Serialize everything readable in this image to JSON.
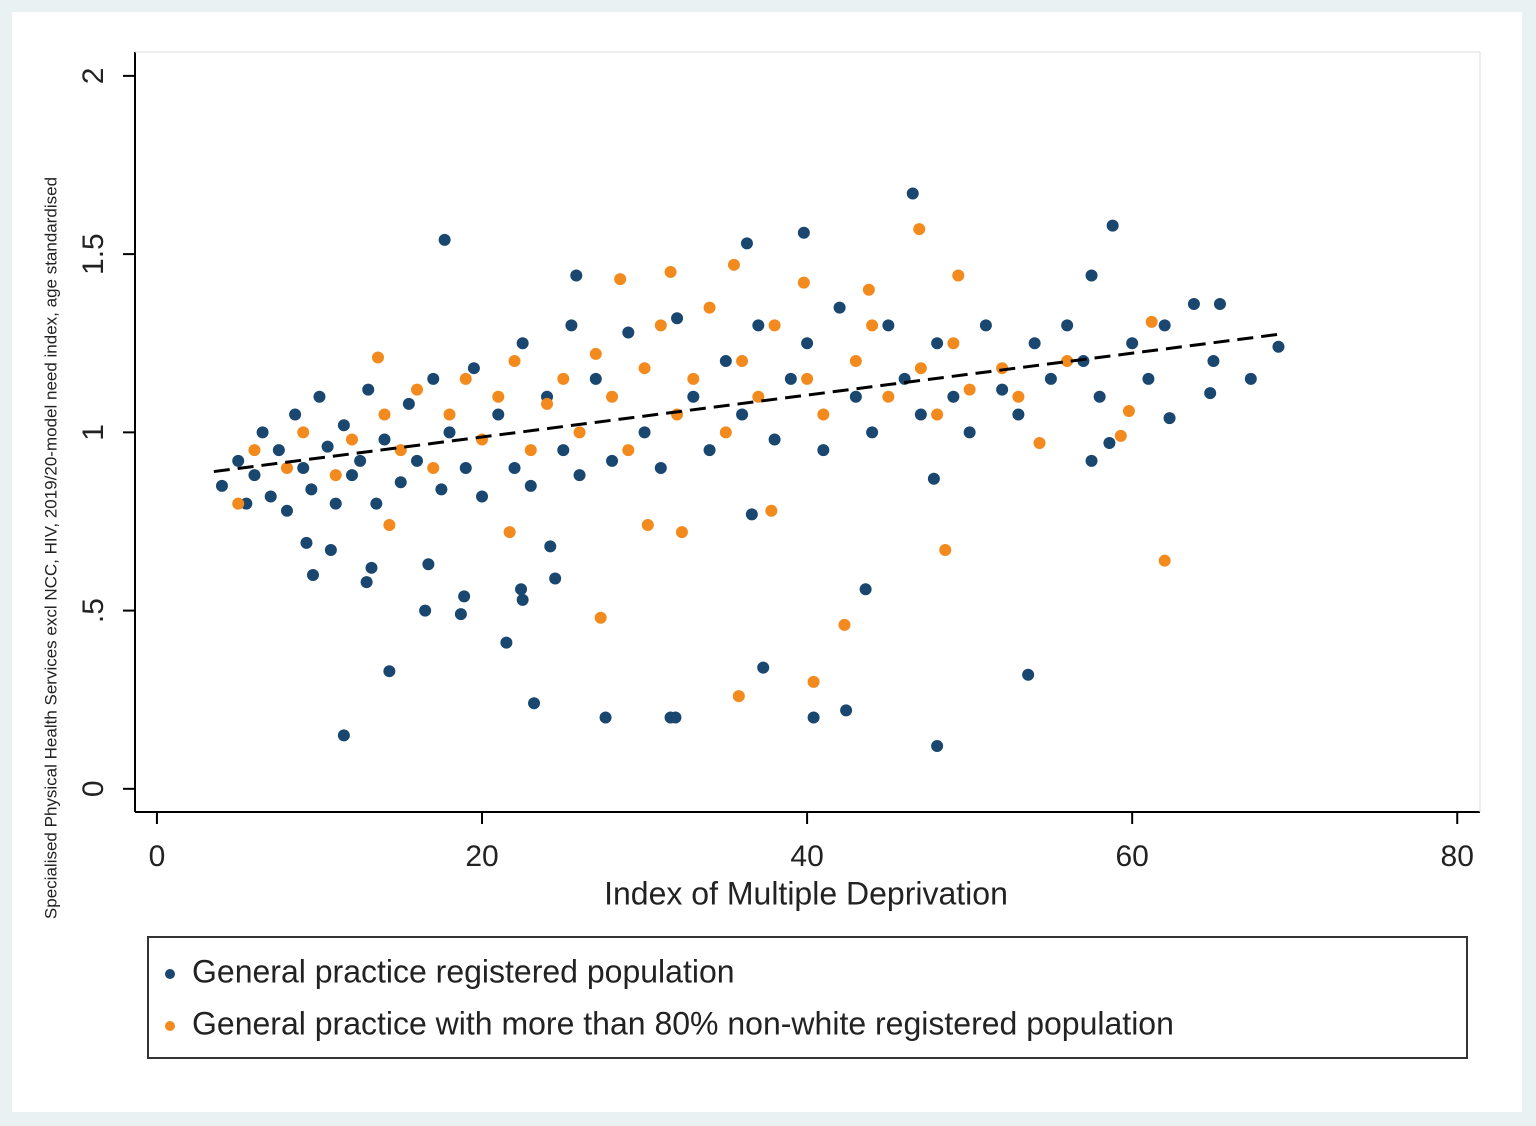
{
  "chart_data": {
    "type": "scatter",
    "xlabel": "Index of Multiple Deprivation",
    "ylabel": "Specialised Physical Health Services excl NCC, HIV, 2019/20-model need index, age standardised",
    "xlim": [
      -1.35,
      81.4
    ],
    "ylim": [
      -0.065,
      2.067
    ],
    "xticks": [
      0,
      20,
      40,
      60,
      80
    ],
    "yticks": [
      0,
      {
        "value": 0.5,
        "label": ".5"
      },
      1,
      1.5,
      2
    ],
    "trendline": {
      "color": "#000000",
      "x": [
        3.5,
        69
      ],
      "values": [
        0.89,
        1.275
      ]
    },
    "series": [
      {
        "name": "General practice registered population",
        "color": "#1a476f",
        "x": [
          11.5,
          14.3,
          17.7,
          27.6,
          31.6,
          31.9,
          23.2,
          37.3,
          40.4,
          42.4,
          48,
          53.6,
          43.6,
          21.5,
          16.5,
          18.7,
          18.9,
          22.5,
          22.4,
          24.5,
          12.9,
          13.2,
          9.6,
          46.5,
          58.8,
          39.8,
          36.3,
          25.8,
          57.5,
          63.8,
          65.4,
          67.3,
          69,
          64.8,
          62.3,
          58.6,
          57.5,
          16.7,
          9.2,
          24.2,
          10.7,
          47.8,
          36.6,
          4,
          5,
          5.5,
          6,
          6.5,
          7,
          7.5,
          8,
          8.5,
          9,
          9.5,
          10,
          10.5,
          11,
          11.5,
          12,
          12.5,
          13,
          13.5,
          14,
          15,
          15.5,
          16,
          17,
          17.5,
          18,
          19,
          19.5,
          20,
          21,
          22,
          22.5,
          23,
          24,
          25,
          25.5,
          26,
          27,
          28,
          29,
          30,
          31,
          32,
          33,
          34,
          35,
          36,
          37,
          38,
          39,
          40,
          41,
          42,
          43,
          44,
          45,
          46,
          47,
          48,
          49,
          50,
          51,
          52,
          53,
          54,
          55,
          56,
          57,
          58,
          60,
          61,
          62,
          65
        ],
        "values": [
          0.15,
          0.33,
          1.54,
          0.2,
          0.2,
          0.2,
          0.24,
          0.34,
          0.2,
          0.22,
          0.12,
          0.32,
          0.56,
          0.41,
          0.5,
          0.49,
          0.54,
          0.53,
          0.56,
          0.59,
          0.58,
          0.62,
          0.6,
          1.67,
          1.58,
          1.56,
          1.53,
          1.44,
          1.44,
          1.36,
          1.36,
          1.15,
          1.24,
          1.11,
          1.04,
          0.97,
          0.92,
          0.63,
          0.69,
          0.68,
          0.67,
          0.87,
          0.77,
          0.85,
          0.92,
          0.8,
          0.88,
          1.0,
          0.82,
          0.95,
          0.78,
          1.05,
          0.9,
          0.84,
          1.1,
          0.96,
          0.8,
          1.02,
          0.88,
          0.92,
          1.12,
          0.8,
          0.98,
          0.86,
          1.08,
          0.92,
          1.15,
          0.84,
          1.0,
          0.9,
          1.18,
          0.82,
          1.05,
          0.9,
          1.25,
          0.85,
          1.1,
          0.95,
          1.3,
          0.88,
          1.15,
          0.92,
          1.28,
          1.0,
          0.9,
          1.32,
          1.1,
          0.95,
          1.2,
          1.05,
          1.3,
          0.98,
          1.15,
          1.25,
          0.95,
          1.35,
          1.1,
          1.0,
          1.3,
          1.15,
          1.05,
          1.25,
          1.1,
          1.0,
          1.3,
          1.12,
          1.05,
          1.25,
          1.15,
          1.3,
          1.2,
          1.1,
          1.25,
          1.15,
          1.3,
          1.2
        ]
      },
      {
        "name": "General practice with more than 80% non-white registered population",
        "color": "#f28a1e",
        "x": [
          27.3,
          35.8,
          40.4,
          42.3,
          48.5,
          62,
          46.9,
          31.6,
          35.5,
          43.8,
          49.3,
          61.2,
          39.8,
          14.3,
          21.7,
          32.3,
          30.2,
          54.3,
          59.8,
          59.3,
          13.6,
          28.5,
          5,
          37.8,
          6,
          8,
          9,
          11,
          12,
          14,
          15,
          16,
          17,
          18,
          19,
          20,
          21,
          22,
          23,
          24,
          25,
          26,
          27,
          28,
          29,
          30,
          31,
          32,
          33,
          34,
          35,
          36,
          37,
          38,
          40,
          41,
          43,
          44,
          45,
          47,
          48,
          49,
          50,
          52,
          53,
          56
        ],
        "values": [
          0.48,
          0.26,
          0.3,
          0.46,
          0.67,
          0.64,
          1.57,
          1.45,
          1.47,
          1.4,
          1.44,
          1.31,
          1.42,
          0.74,
          0.72,
          0.72,
          0.74,
          0.97,
          1.06,
          0.99,
          1.21,
          1.43,
          0.8,
          0.78,
          0.95,
          0.9,
          1.0,
          0.88,
          0.98,
          1.05,
          0.95,
          1.12,
          0.9,
          1.05,
          1.15,
          0.98,
          1.1,
          1.2,
          0.95,
          1.08,
          1.15,
          1.0,
          1.22,
          1.1,
          0.95,
          1.18,
          1.3,
          1.05,
          1.15,
          1.35,
          1.0,
          1.2,
          1.1,
          1.3,
          1.15,
          1.05,
          1.2,
          1.3,
          1.1,
          1.18,
          1.05,
          1.25,
          1.12,
          1.18,
          1.1,
          1.2
        ]
      }
    ]
  }
}
